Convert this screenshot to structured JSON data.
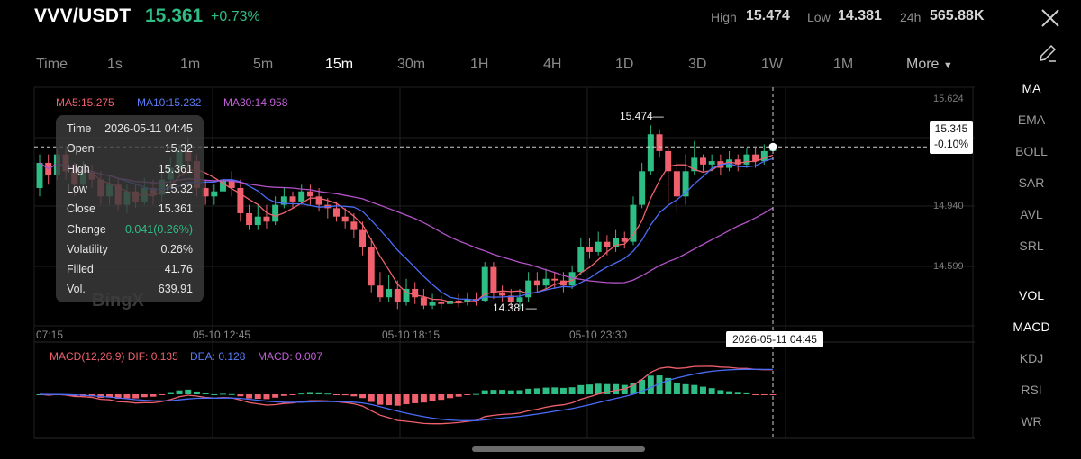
{
  "header": {
    "pair": "VVV/USDT",
    "price": "15.361",
    "change": "+0.73%",
    "high_label": "High",
    "high_value": "15.474",
    "low_label": "Low",
    "low_value": "14.381",
    "vol_label": "24h",
    "vol_value": "565.88K"
  },
  "timeframes": [
    "Time",
    "1s",
    "1m",
    "5m",
    "15m",
    "30m",
    "1H",
    "4H",
    "1D",
    "3D",
    "1W",
    "1M"
  ],
  "active_timeframe": "15m",
  "more_label": "More",
  "indicators_main": [
    "MA",
    "EMA",
    "BOLL",
    "SAR",
    "AVL",
    "SRL"
  ],
  "indicators_sub": [
    "VOL",
    "MACD",
    "KDJ",
    "RSI",
    "WR"
  ],
  "ma_labels": {
    "ma5": "MA5:15.275",
    "ma10": "MA10:15.232",
    "ma30": "MA30:14.958"
  },
  "tooltip": [
    {
      "label": "Time",
      "value": "2026-05-11 04:45"
    },
    {
      "label": "Open",
      "value": "15.32"
    },
    {
      "label": "High",
      "value": "15.361"
    },
    {
      "label": "Low",
      "value": "15.32"
    },
    {
      "label": "Close",
      "value": "15.361"
    },
    {
      "label": "Change",
      "value": "0.041(0.26%)"
    },
    {
      "label": "Volatility",
      "value": "0.26%"
    },
    {
      "label": "Filled",
      "value": "41.76"
    },
    {
      "label": "Vol.",
      "value": "639.91"
    }
  ],
  "price_axis": [
    "15.624",
    "14.940",
    "14.599"
  ],
  "x_labels": [
    "07:15",
    "05-10 12:45",
    "05-10 18:15",
    "05-10 23:30"
  ],
  "crosshair_price": "15.345",
  "crosshair_change": "-0.10%",
  "crosshair_time": "2026-05-11 04:45",
  "high_marker": "15.474",
  "low_marker": "14.381",
  "macd_labels": {
    "name": "MACD(12,26,9)",
    "dif": "DIF: 0.135",
    "dea": "DEA: 0.128",
    "macd": "MACD: 0.007"
  },
  "watermark": "BingX",
  "colors": {
    "up": "#2ebd85",
    "down": "#f0616d",
    "ma5": "#f0616d",
    "ma10": "#4a6cf7",
    "ma30": "#b452c8"
  },
  "chart_data": {
    "type": "candlestick",
    "candles": [
      [
        15.1,
        15.25,
        15.3,
        15.05
      ],
      [
        15.25,
        15.18,
        15.3,
        15.12
      ],
      [
        15.18,
        15.3,
        15.34,
        15.15
      ],
      [
        15.3,
        15.2,
        15.33,
        15.15
      ],
      [
        15.2,
        15.12,
        15.25,
        15.05
      ],
      [
        15.12,
        15.2,
        15.26,
        15.08
      ],
      [
        15.2,
        15.15,
        15.24,
        15.1
      ],
      [
        15.15,
        15.05,
        15.2,
        15.0
      ],
      [
        15.05,
        15.12,
        15.18,
        15.0
      ],
      [
        15.12,
        15.0,
        15.16,
        14.97
      ],
      [
        15.0,
        15.08,
        15.12,
        14.95
      ],
      [
        15.08,
        15.02,
        15.12,
        14.98
      ],
      [
        15.02,
        15.1,
        15.16,
        15.0
      ],
      [
        15.1,
        15.06,
        15.15,
        15.0
      ],
      [
        15.06,
        15.15,
        15.2,
        15.02
      ],
      [
        15.15,
        15.22,
        15.28,
        15.1
      ],
      [
        15.22,
        15.32,
        15.36,
        15.18
      ],
      [
        15.32,
        15.26,
        15.4,
        15.2
      ],
      [
        15.26,
        15.1,
        15.3,
        15.05
      ],
      [
        15.1,
        15.05,
        15.15,
        15.0
      ],
      [
        15.05,
        15.08,
        15.12,
        15.0
      ],
      [
        15.08,
        15.15,
        15.2,
        15.04
      ],
      [
        15.15,
        15.1,
        15.2,
        15.05
      ],
      [
        15.1,
        14.95,
        15.15,
        14.9
      ],
      [
        14.95,
        14.88,
        15.0,
        14.85
      ],
      [
        14.88,
        14.93,
        15.0,
        14.85
      ],
      [
        14.93,
        14.9,
        15.0,
        14.86
      ],
      [
        14.9,
        15.0,
        15.05,
        14.88
      ],
      [
        15.0,
        15.05,
        15.1,
        14.98
      ],
      [
        15.05,
        15.02,
        15.08,
        14.98
      ],
      [
        15.02,
        15.08,
        15.12,
        15.0
      ],
      [
        15.08,
        15.05,
        15.12,
        15.0
      ],
      [
        15.05,
        15.0,
        15.1,
        14.96
      ],
      [
        15.0,
        14.98,
        15.04,
        14.92
      ],
      [
        14.98,
        14.93,
        15.02,
        14.9
      ],
      [
        14.93,
        14.9,
        14.98,
        14.86
      ],
      [
        14.9,
        14.85,
        14.95,
        14.8
      ],
      [
        14.85,
        14.75,
        14.9,
        14.7
      ],
      [
        14.75,
        14.52,
        14.8,
        14.48
      ],
      [
        14.52,
        14.45,
        14.6,
        14.42
      ],
      [
        14.45,
        14.5,
        14.58,
        14.42
      ],
      [
        14.5,
        14.42,
        14.55,
        14.38
      ],
      [
        14.42,
        14.5,
        14.56,
        14.4
      ],
      [
        14.5,
        14.45,
        14.54,
        14.41
      ],
      [
        14.45,
        14.4,
        14.5,
        14.38
      ],
      [
        14.4,
        14.42,
        14.47,
        14.38
      ],
      [
        14.42,
        14.41,
        14.46,
        14.38
      ],
      [
        14.41,
        14.43,
        14.48,
        14.39
      ],
      [
        14.43,
        14.42,
        14.47,
        14.39
      ],
      [
        14.42,
        14.44,
        14.48,
        14.4
      ],
      [
        14.44,
        14.43,
        14.48,
        14.4
      ],
      [
        14.43,
        14.63,
        14.66,
        14.42
      ],
      [
        14.63,
        14.48,
        14.66,
        14.44
      ],
      [
        14.48,
        14.46,
        14.52,
        14.42
      ],
      [
        14.46,
        14.42,
        14.5,
        14.38
      ],
      [
        14.42,
        14.45,
        14.5,
        14.381
      ],
      [
        14.45,
        14.55,
        14.6,
        14.42
      ],
      [
        14.55,
        14.52,
        14.6,
        14.48
      ],
      [
        14.52,
        14.56,
        14.62,
        14.5
      ],
      [
        14.56,
        14.55,
        14.6,
        14.5
      ],
      [
        14.55,
        14.52,
        14.6,
        14.48
      ],
      [
        14.52,
        14.6,
        14.64,
        14.5
      ],
      [
        14.6,
        14.75,
        14.8,
        14.58
      ],
      [
        14.75,
        14.72,
        14.8,
        14.68
      ],
      [
        14.72,
        14.78,
        14.84,
        14.7
      ],
      [
        14.78,
        14.75,
        14.82,
        14.7
      ],
      [
        14.75,
        14.8,
        14.85,
        14.72
      ],
      [
        14.8,
        14.78,
        14.84,
        14.74
      ],
      [
        14.78,
        15.0,
        15.05,
        14.76
      ],
      [
        15.0,
        15.2,
        15.25,
        14.98
      ],
      [
        15.2,
        15.42,
        15.474,
        15.18
      ],
      [
        15.42,
        15.32,
        15.45,
        15.28
      ],
      [
        15.32,
        15.2,
        15.35,
        15.0
      ],
      [
        15.2,
        15.05,
        15.26,
        14.95
      ],
      [
        15.05,
        15.2,
        15.3,
        15.0
      ],
      [
        15.2,
        15.28,
        15.38,
        15.18
      ],
      [
        15.28,
        15.24,
        15.3,
        15.2
      ],
      [
        15.24,
        15.26,
        15.3,
        15.2
      ],
      [
        15.26,
        15.22,
        15.3,
        15.18
      ],
      [
        15.22,
        15.27,
        15.32,
        15.2
      ],
      [
        15.27,
        15.24,
        15.3,
        15.2
      ],
      [
        15.24,
        15.3,
        15.34,
        15.22
      ],
      [
        15.3,
        15.26,
        15.34,
        15.22
      ],
      [
        15.26,
        15.32,
        15.36,
        15.24
      ],
      [
        15.32,
        15.361,
        15.361,
        15.32
      ]
    ]
  }
}
